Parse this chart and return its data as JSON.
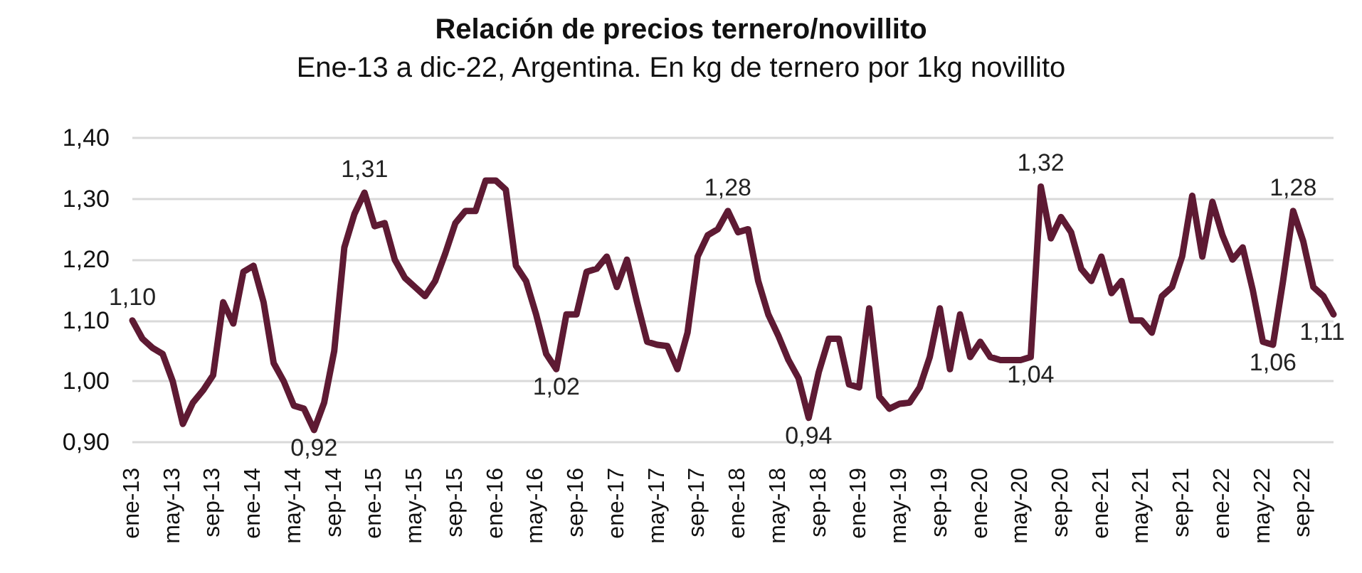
{
  "chart_data": {
    "type": "line",
    "title": "Relación de precios ternero/novillito",
    "subtitle": "Ene-13 a dic-22, Argentina. En kg de ternero por 1kg novillito",
    "categories": [
      "ene-13",
      null,
      null,
      null,
      "may-13",
      null,
      null,
      null,
      "sep-13",
      null,
      null,
      null,
      "ene-14",
      null,
      null,
      null,
      "may-14",
      null,
      null,
      null,
      "sep-14",
      null,
      null,
      null,
      "ene-15",
      null,
      null,
      null,
      "may-15",
      null,
      null,
      null,
      "sep-15",
      null,
      null,
      null,
      "ene-16",
      null,
      null,
      null,
      "may-16",
      null,
      null,
      null,
      "sep-16",
      null,
      null,
      null,
      "ene-17",
      null,
      null,
      null,
      "may-17",
      null,
      null,
      null,
      "sep-17",
      null,
      null,
      null,
      "ene-18",
      null,
      null,
      null,
      "may-18",
      null,
      null,
      null,
      "sep-18",
      null,
      null,
      null,
      "ene-19",
      null,
      null,
      null,
      "may-19",
      null,
      null,
      null,
      "sep-19",
      null,
      null,
      null,
      "ene-20",
      null,
      null,
      null,
      "may-20",
      null,
      null,
      null,
      "sep-20",
      null,
      null,
      null,
      "ene-21",
      null,
      null,
      null,
      "may-21",
      null,
      null,
      null,
      "sep-21",
      null,
      null,
      null,
      "ene-22",
      null,
      null,
      null,
      "may-22",
      null,
      null,
      null,
      "sep-22",
      null,
      null,
      null
    ],
    "series": [
      {
        "color": "#5e1a33",
        "values": [
          1.1,
          1.07,
          1.055,
          1.045,
          1.0,
          0.93,
          0.965,
          0.985,
          1.01,
          1.13,
          1.095,
          1.18,
          1.19,
          1.13,
          1.03,
          1.0,
          0.96,
          0.955,
          0.92,
          0.965,
          1.05,
          1.22,
          1.275,
          1.31,
          1.255,
          1.26,
          1.2,
          1.17,
          1.155,
          1.14,
          1.165,
          1.21,
          1.26,
          1.28,
          1.28,
          1.33,
          1.33,
          1.315,
          1.19,
          1.165,
          1.11,
          1.045,
          1.02,
          1.11,
          1.11,
          1.18,
          1.185,
          1.205,
          1.155,
          1.2,
          1.13,
          1.065,
          1.06,
          1.058,
          1.02,
          1.08,
          1.205,
          1.24,
          1.25,
          1.28,
          1.245,
          1.25,
          1.165,
          1.11,
          1.075,
          1.035,
          1.005,
          0.94,
          1.015,
          1.07,
          1.07,
          0.995,
          0.99,
          1.12,
          0.975,
          0.955,
          0.963,
          0.965,
          0.99,
          1.04,
          1.12,
          1.02,
          1.11,
          1.04,
          1.065,
          1.04,
          1.035,
          1.035,
          1.035,
          1.04,
          1.32,
          1.235,
          1.27,
          1.245,
          1.185,
          1.165,
          1.205,
          1.145,
          1.165,
          1.1,
          1.1,
          1.08,
          1.14,
          1.155,
          1.205,
          1.305,
          1.205,
          1.295,
          1.24,
          1.2,
          1.22,
          1.15,
          1.065,
          1.06,
          1.165,
          1.28,
          1.23,
          1.155,
          1.14,
          1.11
        ],
        "value_labels": [
          "1,10",
          null,
          null,
          null,
          null,
          null,
          null,
          null,
          null,
          null,
          null,
          null,
          null,
          null,
          null,
          null,
          null,
          null,
          "0,92",
          null,
          null,
          null,
          null,
          "1,31",
          null,
          null,
          null,
          null,
          null,
          null,
          null,
          null,
          null,
          null,
          null,
          null,
          null,
          null,
          null,
          null,
          null,
          null,
          "1,02",
          null,
          null,
          null,
          null,
          null,
          null,
          null,
          null,
          null,
          null,
          null,
          null,
          null,
          null,
          null,
          null,
          "1,28",
          null,
          null,
          null,
          null,
          null,
          null,
          null,
          "0,94",
          null,
          null,
          null,
          null,
          null,
          null,
          null,
          null,
          null,
          null,
          null,
          null,
          null,
          null,
          null,
          null,
          null,
          null,
          null,
          null,
          null,
          "1,04",
          "1,32",
          null,
          null,
          null,
          null,
          null,
          null,
          null,
          null,
          null,
          null,
          null,
          null,
          null,
          null,
          null,
          null,
          null,
          null,
          null,
          null,
          null,
          null,
          "1,06",
          null,
          "1,28",
          null,
          null,
          null,
          "1,11"
        ]
      }
    ],
    "ylim": [
      0.9,
      1.4
    ],
    "yticks": [
      {
        "value": 0.9,
        "label": "0,90"
      },
      {
        "value": 1.0,
        "label": "1,00"
      },
      {
        "value": 1.1,
        "label": "1,10"
      },
      {
        "value": 1.2,
        "label": "1,20"
      },
      {
        "value": 1.3,
        "label": "1,30"
      },
      {
        "value": 1.4,
        "label": "1,40"
      }
    ],
    "grid": "y",
    "marker": "none",
    "line_style": "solid"
  }
}
